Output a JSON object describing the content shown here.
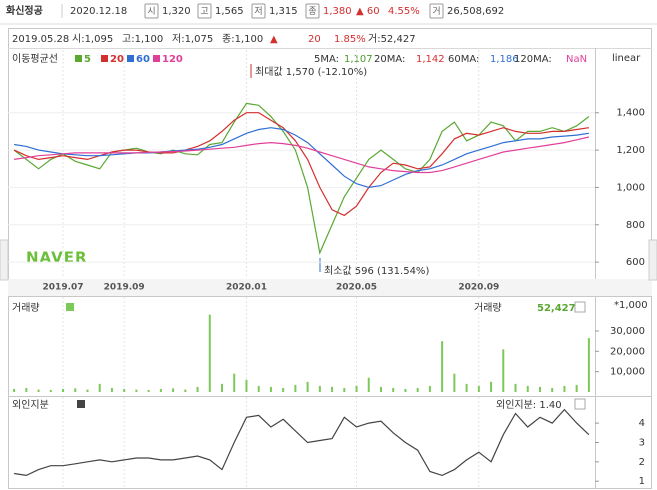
{
  "header": {
    "name": "화신정공",
    "date": "2020.12.18",
    "items": [
      {
        "icon": "시",
        "value": "1,320"
      },
      {
        "icon": "고",
        "value": "1,565"
      },
      {
        "icon": "저",
        "value": "1,315"
      },
      {
        "icon": "종",
        "value": "1,380",
        "change": "▲ 60",
        "pct": "4.55%"
      },
      {
        "icon": "거",
        "value": "26,508,692"
      }
    ]
  },
  "info": {
    "date": "2019.05.28",
    "fields": [
      "시:1,095",
      "고:1,100",
      "저:1,075",
      "종:1,100"
    ],
    "change": "▲",
    "change_value": "20",
    "change_pct": "1.85%",
    "volume": "거:52,427"
  },
  "chart_data": [
    {
      "type": "line",
      "legend_title": "이동평균선",
      "scale_label": "linear",
      "watermark": "NAVER",
      "annotations": [
        "최대값 1,570 (-12.10%)",
        "최소값 596 (131.54%)"
      ],
      "ma_values": [
        {
          "label": "5MA:",
          "value": "1,107",
          "color": "#4a9a2a"
        },
        {
          "label": "20MA:",
          "value": "1,142",
          "color": "#d42f2f"
        },
        {
          "label": "60MA:",
          "value": "1,186",
          "color": "#2f6fd4"
        },
        {
          "label": "120MA:",
          "value": "NaN",
          "color": "#e0409a"
        }
      ],
      "categories": [
        null,
        null,
        null,
        null,
        "2019.07",
        null,
        null,
        null,
        null,
        "2019.09",
        null,
        null,
        null,
        null,
        null,
        null,
        null,
        null,
        null,
        "2020.01",
        null,
        null,
        null,
        null,
        null,
        null,
        null,
        null,
        "2020.05",
        null,
        null,
        null,
        null,
        null,
        null,
        null,
        null,
        null,
        "2020.09",
        null,
        null,
        null,
        null,
        null,
        null,
        null,
        null,
        null
      ],
      "series": [
        {
          "name": "5",
          "color": "#5aa832",
          "values": [
            1200,
            1150,
            1100,
            1150,
            1180,
            1140,
            1120,
            1100,
            1190,
            1200,
            1210,
            1190,
            1180,
            1200,
            1180,
            1175,
            1230,
            1240,
            1350,
            1450,
            1440,
            1380,
            1300,
            1200,
            1000,
            650,
            800,
            950,
            1050,
            1150,
            1200,
            1150,
            1100,
            1080,
            1150,
            1300,
            1350,
            1250,
            1280,
            1350,
            1330,
            1250,
            1300,
            1300,
            1320,
            1300,
            1330,
            1380
          ]
        },
        {
          "name": "20",
          "color": "#d42f2f",
          "values": [
            1200,
            1170,
            1150,
            1160,
            1170,
            1160,
            1150,
            1170,
            1190,
            1200,
            1200,
            1190,
            1185,
            1185,
            1200,
            1220,
            1250,
            1300,
            1360,
            1400,
            1400,
            1360,
            1320,
            1250,
            1150,
            1000,
            880,
            850,
            900,
            1000,
            1080,
            1130,
            1120,
            1100,
            1110,
            1180,
            1260,
            1290,
            1280,
            1300,
            1320,
            1300,
            1290,
            1290,
            1300,
            1300,
            1310,
            1320
          ]
        },
        {
          "name": "60",
          "color": "#2f6fd4",
          "values": [
            1230,
            1220,
            1200,
            1190,
            1180,
            1175,
            1170,
            1170,
            1175,
            1180,
            1185,
            1185,
            1190,
            1195,
            1200,
            1205,
            1215,
            1230,
            1260,
            1290,
            1310,
            1320,
            1310,
            1280,
            1240,
            1180,
            1120,
            1060,
            1020,
            1000,
            1010,
            1040,
            1070,
            1090,
            1100,
            1120,
            1150,
            1180,
            1200,
            1220,
            1240,
            1250,
            1260,
            1260,
            1270,
            1275,
            1280,
            1290
          ]
        },
        {
          "name": "120",
          "color": "#e0409a",
          "values": [
            1150,
            1160,
            1170,
            1175,
            1180,
            1185,
            1185,
            1185,
            1185,
            1185,
            1185,
            1188,
            1190,
            1192,
            1195,
            1200,
            1205,
            1210,
            1215,
            1225,
            1235,
            1240,
            1235,
            1225,
            1210,
            1190,
            1170,
            1150,
            1130,
            1110,
            1100,
            1090,
            1085,
            1080,
            1080,
            1090,
            1110,
            1130,
            1150,
            1170,
            1190,
            1200,
            1210,
            1220,
            1230,
            1240,
            1255,
            1270
          ]
        }
      ],
      "ylim": [
        515,
        1736
      ],
      "yticks": [
        {
          "value": 1400,
          "label": "1,400"
        },
        {
          "value": 1200,
          "label": "1,200"
        },
        {
          "value": 1000,
          "label": "1,000"
        },
        800,
        600
      ],
      "grid": true
    },
    {
      "type": "bar",
      "title": "거래량",
      "right_label": "거래량",
      "right_value": "52,427",
      "unit": "*1,000",
      "color": "#7cc95a",
      "values": [
        1500,
        2000,
        1200,
        1000,
        1500,
        1800,
        1200,
        4000,
        2000,
        1500,
        1200,
        1000,
        1500,
        1800,
        1200,
        2500,
        38000,
        4000,
        9000,
        6000,
        3000,
        2500,
        2000,
        3500,
        5000,
        3000,
        2500,
        2000,
        3000,
        7000,
        2500,
        2000,
        1500,
        2000,
        3000,
        25000,
        9000,
        4000,
        3000,
        5000,
        21000,
        4000,
        3000,
        2500,
        2000,
        3000,
        3500,
        26509
      ],
      "ylim": [
        0,
        46700
      ],
      "yticks": [
        {
          "value": 30000,
          "label": "30,000"
        },
        {
          "value": 20000,
          "label": "20,000"
        },
        {
          "value": 10000,
          "label": "10,000"
        }
      ]
    },
    {
      "type": "line",
      "title": "외인지분",
      "right_label": "외인지분: 1.40",
      "series": [
        {
          "color": "#444444",
          "values": [
            1.4,
            1.3,
            1.6,
            1.8,
            1.8,
            1.9,
            2.0,
            2.1,
            2.0,
            2.1,
            2.2,
            2.2,
            2.1,
            2.1,
            2.2,
            2.3,
            2.1,
            1.6,
            3.0,
            4.3,
            4.4,
            3.8,
            4.2,
            3.6,
            3.0,
            3.1,
            3.2,
            4.3,
            3.8,
            4.0,
            4.1,
            3.5,
            3.0,
            2.6,
            1.5,
            1.3,
            1.6,
            2.1,
            2.5,
            2.0,
            3.4,
            4.5,
            3.8,
            4.3,
            4.0,
            4.7,
            4.0,
            3.4
          ]
        }
      ],
      "ylim": [
        0.7,
        5.35
      ],
      "yticks": [
        4,
        3,
        2,
        1
      ]
    }
  ]
}
